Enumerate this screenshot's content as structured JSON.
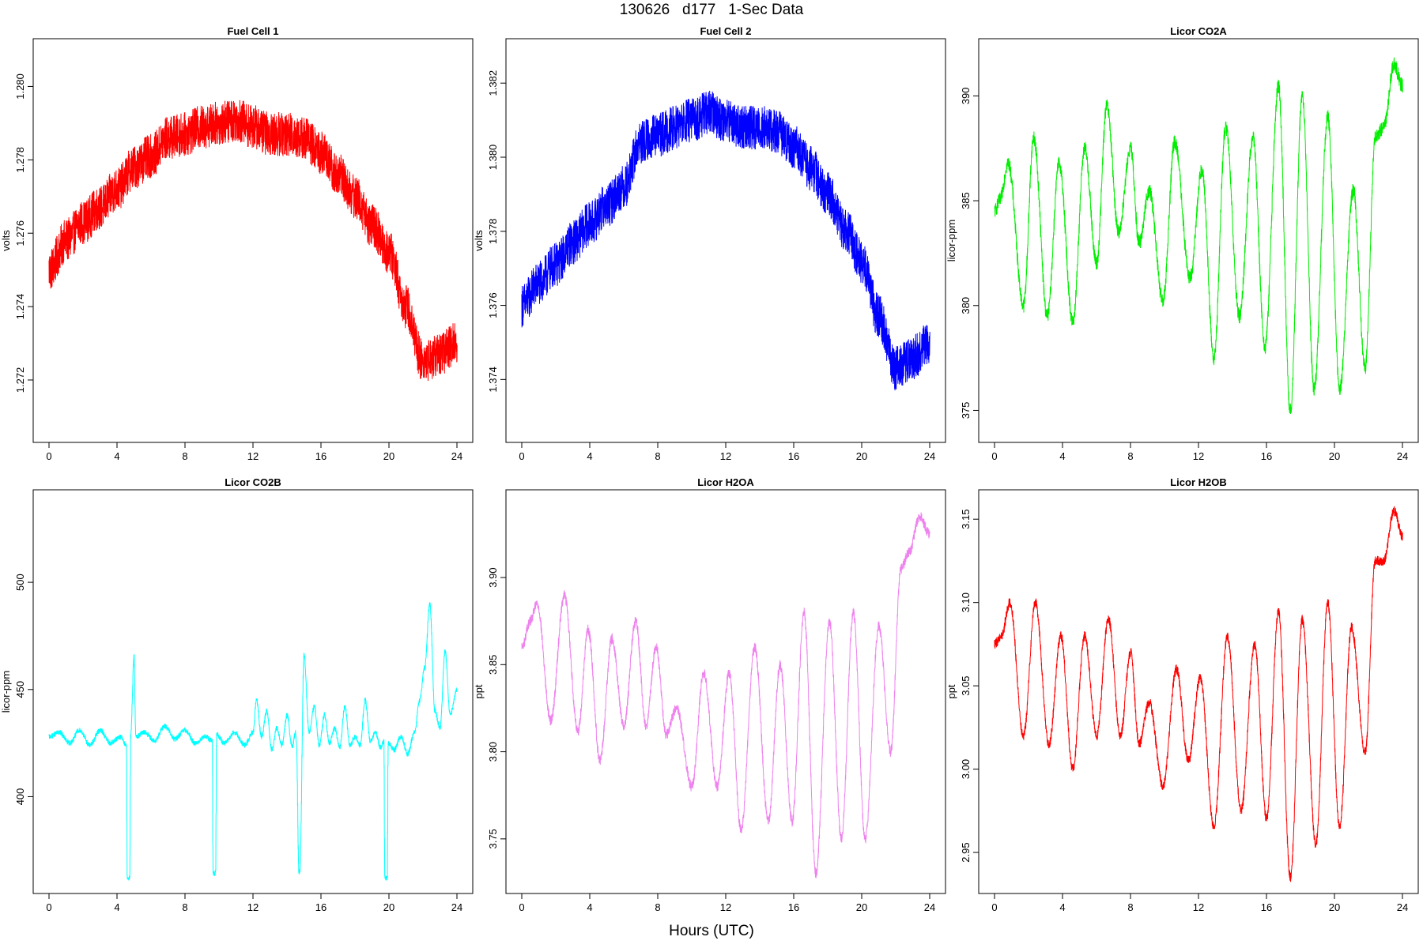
{
  "page": {
    "title": "130626   d177   1-Sec Data",
    "xlabel": "Hours (UTC)"
  },
  "chart_data": [
    {
      "type": "line",
      "title": "Fuel Cell 1",
      "ylabel": "volts",
      "color": "#ff0000",
      "xlim": [
        0,
        24
      ],
      "ylim": [
        1.2706,
        1.281
      ],
      "xticks": [
        0,
        4,
        8,
        12,
        16,
        20,
        24
      ],
      "yticks": [
        1.272,
        1.274,
        1.276,
        1.278,
        1.28
      ],
      "ytick_labels": [
        "1.272",
        "1.274",
        "1.276",
        "1.278",
        "1.280"
      ],
      "noise": 0.0006,
      "series": [
        {
          "x": [
            0,
            1,
            2,
            3,
            4,
            5,
            6,
            7,
            8,
            9,
            10,
            11,
            12,
            13,
            14,
            15,
            16,
            17,
            18,
            19,
            20,
            21,
            22,
            23,
            24
          ],
          "y": [
            1.275,
            1.2758,
            1.2763,
            1.2767,
            1.2772,
            1.2778,
            1.2781,
            1.2786,
            1.2787,
            1.2789,
            1.279,
            1.2791,
            1.2789,
            1.2787,
            1.2787,
            1.2786,
            1.2782,
            1.2776,
            1.277,
            1.2762,
            1.2755,
            1.274,
            1.2725,
            1.2727,
            1.273
          ]
        }
      ]
    },
    {
      "type": "line",
      "title": "Fuel Cell 2",
      "ylabel": "volts",
      "color": "#0000ff",
      "xlim": [
        0,
        24
      ],
      "ylim": [
        1.3726,
        1.3829
      ],
      "xticks": [
        0,
        4,
        8,
        12,
        16,
        20,
        24
      ],
      "yticks": [
        1.374,
        1.376,
        1.378,
        1.38,
        1.382
      ],
      "ytick_labels": [
        "1.374",
        "1.376",
        "1.378",
        "1.380",
        "1.382"
      ],
      "noise": 0.0006,
      "series": [
        {
          "x": [
            0,
            1,
            2,
            3,
            4,
            5,
            6,
            7,
            8,
            9,
            10,
            11,
            12,
            13,
            14,
            15,
            16,
            17,
            18,
            19,
            20,
            21,
            22,
            23,
            24
          ],
          "y": [
            1.376,
            1.3766,
            1.3771,
            1.3777,
            1.3782,
            1.3787,
            1.3792,
            1.3804,
            1.3806,
            1.3808,
            1.381,
            1.3812,
            1.381,
            1.3808,
            1.3808,
            1.3807,
            1.3803,
            1.3797,
            1.379,
            1.3781,
            1.3772,
            1.3757,
            1.3743,
            1.3746,
            1.375
          ]
        }
      ]
    },
    {
      "type": "line",
      "title": "Licor CO2A",
      "ylabel": "licor-ppm",
      "color": "#00ee00",
      "xlim": [
        0,
        24
      ],
      "ylim": [
        374,
        392.2
      ],
      "xticks": [
        0,
        4,
        8,
        12,
        16,
        20,
        24
      ],
      "yticks": [
        375,
        380,
        385,
        390
      ],
      "ytick_labels": [
        "375",
        "380",
        "385",
        "390"
      ],
      "noise": 0.35,
      "series": [
        {
          "x": [
            0,
            0.3,
            0.8,
            1.7,
            2.3,
            3.1,
            3.8,
            4.6,
            5.3,
            6.0,
            6.6,
            7.3,
            8.0,
            8.5,
            9.1,
            9.9,
            10.6,
            11.5,
            12.2,
            12.9,
            13.6,
            14.4,
            15.2,
            15.9,
            16.7,
            17.4,
            18.1,
            18.8,
            19.6,
            20.3,
            21.1,
            21.8,
            22.4,
            22.9,
            23.5,
            24
          ],
          "y": [
            384.5,
            385.0,
            386.8,
            380.0,
            388.0,
            379.5,
            386.8,
            379.2,
            387.5,
            382.0,
            389.5,
            383.5,
            387.5,
            383.0,
            385.5,
            380.2,
            387.8,
            381.3,
            386.5,
            377.5,
            388.5,
            379.5,
            388.0,
            378.0,
            390.5,
            375.0,
            390.0,
            376.0,
            389.0,
            376.0,
            385.5,
            377.0,
            388.0,
            388.5,
            391.5,
            390.5
          ]
        }
      ]
    },
    {
      "type": "line",
      "title": "Licor CO2B",
      "ylabel": "licor-ppm",
      "color": "#00ffff",
      "xlim": [
        0,
        24
      ],
      "ylim": [
        360,
        538
      ],
      "xticks": [
        0,
        4,
        8,
        12,
        16,
        20,
        24
      ],
      "yticks": [
        400,
        450,
        500
      ],
      "ytick_labels": [
        "400",
        "450",
        "500"
      ],
      "noise": 1.2,
      "series": [
        {
          "x": [
            0,
            0.6,
            1.2,
            1.8,
            2.4,
            3.0,
            3.6,
            4.2,
            4.55,
            4.6,
            4.75,
            4.8,
            5.0,
            5.1,
            5.6,
            6.2,
            6.8,
            7.4,
            8.0,
            8.6,
            9.2,
            9.6,
            9.65,
            9.8,
            9.85,
            10.3,
            10.9,
            11.5,
            12.0,
            12.2,
            12.5,
            12.8,
            13.1,
            13.4,
            13.7,
            14.0,
            14.3,
            14.5,
            14.55,
            14.7,
            14.75,
            15.0,
            15.3,
            15.6,
            15.9,
            16.2,
            16.5,
            16.8,
            17.1,
            17.4,
            17.7,
            18.0,
            18.3,
            18.6,
            18.9,
            19.2,
            19.5,
            19.7,
            19.75,
            19.9,
            19.95,
            20.3,
            20.7,
            21.1,
            21.5,
            21.8,
            22.1,
            22.4,
            22.7,
            23.0,
            23.3,
            23.6,
            24
          ],
          "y": [
            428,
            430,
            425,
            431,
            424,
            431,
            425,
            428,
            424,
            362,
            362,
            428,
            466,
            428,
            430,
            426,
            433,
            427,
            431,
            425,
            428,
            426,
            364,
            364,
            429,
            425,
            430,
            424,
            430,
            445,
            428,
            440,
            422,
            432,
            424,
            438,
            423,
            430,
            425,
            365,
            365,
            466,
            430,
            442,
            424,
            438,
            425,
            432,
            423,
            442,
            424,
            428,
            424,
            445,
            426,
            430,
            423,
            426,
            362,
            362,
            425,
            422,
            428,
            420,
            430,
            445,
            460,
            490,
            440,
            432,
            468,
            438,
            450
          ]
        }
      ]
    },
    {
      "type": "line",
      "title": "Licor H2OA",
      "ylabel": "ppt",
      "color": "#ee82ee",
      "xlim": [
        0,
        24
      ],
      "ylim": [
        3.725,
        3.944
      ],
      "xticks": [
        0,
        4,
        8,
        12,
        16,
        20,
        24
      ],
      "yticks": [
        3.75,
        3.8,
        3.85,
        3.9
      ],
      "ytick_labels": [
        "3.75",
        "3.80",
        "3.85",
        "3.90"
      ],
      "noise": 0.003,
      "series": [
        {
          "x": [
            0,
            0.5,
            0.9,
            1.7,
            2.5,
            3.3,
            3.9,
            4.6,
            5.3,
            6.0,
            6.7,
            7.3,
            7.9,
            8.5,
            9.1,
            10.0,
            10.7,
            11.5,
            12.2,
            12.9,
            13.7,
            14.5,
            15.2,
            15.9,
            16.6,
            17.3,
            18.1,
            18.8,
            19.5,
            20.2,
            21.0,
            21.7,
            22.3,
            22.8,
            23.4,
            24
          ],
          "y": [
            3.86,
            3.875,
            3.885,
            3.818,
            3.89,
            3.812,
            3.87,
            3.795,
            3.865,
            3.815,
            3.875,
            3.815,
            3.86,
            3.81,
            3.825,
            3.78,
            3.845,
            3.78,
            3.845,
            3.755,
            3.86,
            3.76,
            3.85,
            3.76,
            3.88,
            3.73,
            3.875,
            3.75,
            3.88,
            3.75,
            3.872,
            3.8,
            3.905,
            3.915,
            3.935,
            3.925
          ]
        }
      ]
    },
    {
      "type": "line",
      "title": "Licor H2OB",
      "ylabel": "ppt",
      "color": "#ff0000",
      "xlim": [
        0,
        24
      ],
      "ylim": [
        2.932,
        3.161
      ],
      "xticks": [
        0,
        4,
        8,
        12,
        16,
        20,
        24
      ],
      "yticks": [
        2.95,
        3.0,
        3.05,
        3.1,
        3.15
      ],
      "ytick_labels": [
        "2.95",
        "3.00",
        "3.05",
        "3.10",
        "3.15"
      ],
      "noise": 0.003,
      "series": [
        {
          "x": [
            0,
            0.4,
            0.9,
            1.7,
            2.4,
            3.2,
            3.9,
            4.6,
            5.3,
            6.0,
            6.7,
            7.4,
            8.0,
            8.5,
            9.1,
            9.9,
            10.7,
            11.4,
            12.1,
            12.9,
            13.7,
            14.5,
            15.3,
            16.0,
            16.7,
            17.4,
            18.1,
            18.9,
            19.6,
            20.3,
            21.0,
            21.8,
            22.4,
            22.9,
            23.5,
            24
          ],
          "y": [
            3.075,
            3.08,
            3.1,
            3.02,
            3.1,
            3.015,
            3.08,
            3.0,
            3.08,
            3.02,
            3.09,
            3.02,
            3.07,
            3.015,
            3.04,
            2.99,
            3.06,
            3.005,
            3.055,
            2.965,
            3.08,
            2.975,
            3.075,
            2.97,
            3.095,
            2.935,
            3.09,
            2.955,
            3.1,
            2.965,
            3.085,
            3.01,
            3.125,
            3.125,
            3.155,
            3.14
          ]
        }
      ]
    }
  ]
}
